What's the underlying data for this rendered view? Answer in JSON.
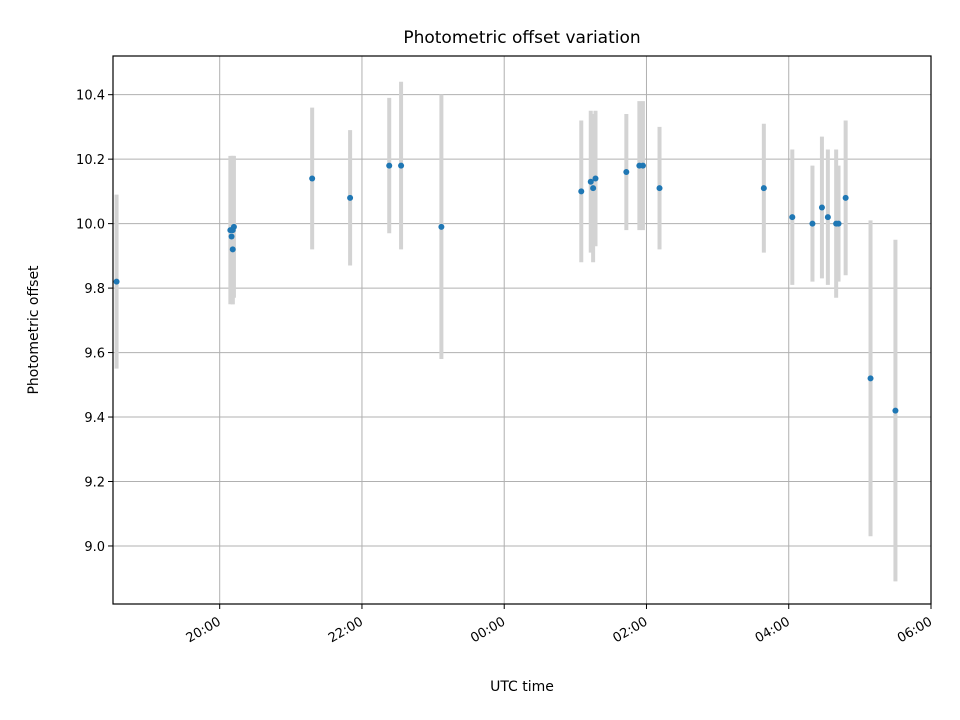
{
  "chart_data": {
    "type": "scatter",
    "title": "Photometric offset variation",
    "xlabel": "UTC time",
    "ylabel": "Photometric offset",
    "x_axis_type": "time",
    "xlim": [
      "18:30",
      "06:00"
    ],
    "ylim": [
      8.82,
      10.52
    ],
    "xticks": [
      "20:00",
      "22:00",
      "00:00",
      "02:00",
      "04:00",
      "06:00"
    ],
    "yticks": [
      "9.0",
      "9.2",
      "9.4",
      "9.6",
      "9.8",
      "10.0",
      "10.2",
      "10.4"
    ],
    "grid": true,
    "colors": {
      "point": "#1f77b4",
      "errorbar": "#d3d3d3",
      "grid": "#b0b0b0"
    },
    "points": [
      {
        "time": "18:33",
        "y": 9.82,
        "yerr": 0.27
      },
      {
        "time": "20:09",
        "y": 9.98,
        "yerr": 0.23
      },
      {
        "time": "20:10",
        "y": 9.96,
        "yerr": 0.2
      },
      {
        "time": "20:11",
        "y": 9.92,
        "yerr": 0.17
      },
      {
        "time": "20:11",
        "y": 9.98,
        "yerr": 0.23
      },
      {
        "time": "20:12",
        "y": 9.99,
        "yerr": 0.22
      },
      {
        "time": "21:18",
        "y": 10.14,
        "yerr": 0.22
      },
      {
        "time": "21:50",
        "y": 10.08,
        "yerr": 0.21
      },
      {
        "time": "22:23",
        "y": 10.18,
        "yerr": 0.21
      },
      {
        "time": "22:33",
        "y": 10.18,
        "yerr": 0.26
      },
      {
        "time": "23:07",
        "y": 9.99,
        "yerr": 0.41
      },
      {
        "time": "01:05",
        "y": 10.1,
        "yerr": 0.22
      },
      {
        "time": "01:13",
        "y": 10.13,
        "yerr": 0.22
      },
      {
        "time": "01:15",
        "y": 10.11,
        "yerr": 0.23
      },
      {
        "time": "01:17",
        "y": 10.14,
        "yerr": 0.21
      },
      {
        "time": "01:43",
        "y": 10.16,
        "yerr": 0.18
      },
      {
        "time": "01:54",
        "y": 10.18,
        "yerr": 0.2
      },
      {
        "time": "01:57",
        "y": 10.18,
        "yerr": 0.2
      },
      {
        "time": "02:11",
        "y": 10.11,
        "yerr": 0.19
      },
      {
        "time": "03:39",
        "y": 10.11,
        "yerr": 0.2
      },
      {
        "time": "04:03",
        "y": 10.02,
        "yerr": 0.21
      },
      {
        "time": "04:20",
        "y": 10.0,
        "yerr": 0.18
      },
      {
        "time": "04:28",
        "y": 10.05,
        "yerr": 0.22
      },
      {
        "time": "04:33",
        "y": 10.02,
        "yerr": 0.21
      },
      {
        "time": "04:40",
        "y": 10.0,
        "yerr": 0.23
      },
      {
        "time": "04:42",
        "y": 10.0,
        "yerr": 0.18
      },
      {
        "time": "04:48",
        "y": 10.08,
        "yerr": 0.24
      },
      {
        "time": "05:09",
        "y": 9.52,
        "yerr": 0.49
      },
      {
        "time": "05:30",
        "y": 9.42,
        "yerr": 0.53
      }
    ]
  }
}
